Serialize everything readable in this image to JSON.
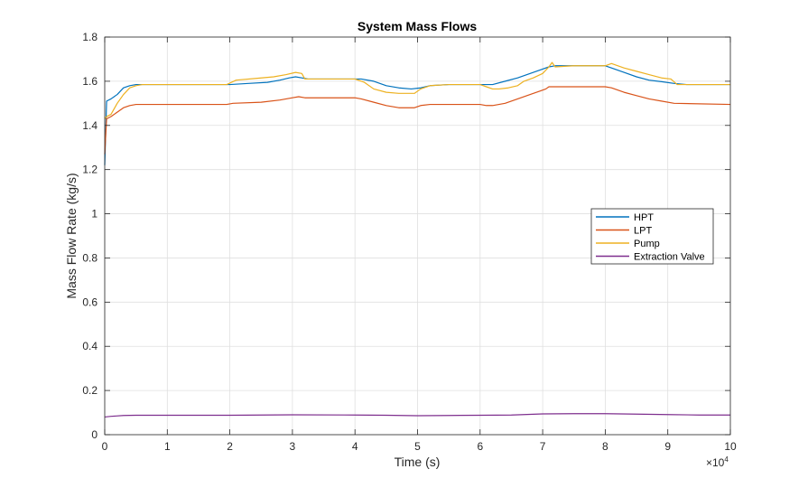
{
  "chart_data": {
    "type": "line",
    "title": "System Mass Flows",
    "xlabel": "Time (s)",
    "ylabel": "Mass Flow Rate (kg/s)",
    "x_multiplier_label": "×10",
    "x_multiplier_exp": "4",
    "xlim": [
      0,
      100000
    ],
    "ylim": [
      0,
      1.8
    ],
    "x_ticks": [
      0,
      10000,
      20000,
      30000,
      40000,
      50000,
      60000,
      70000,
      80000,
      90000,
      100000
    ],
    "x_tick_labels": [
      "0",
      "1",
      "2",
      "3",
      "4",
      "5",
      "6",
      "7",
      "8",
      "9",
      "10"
    ],
    "y_ticks": [
      0,
      0.2,
      0.4,
      0.6,
      0.8,
      1.0,
      1.2,
      1.4,
      1.6,
      1.8
    ],
    "y_tick_labels": [
      "0",
      "0.2",
      "0.4",
      "0.6",
      "0.8",
      "1",
      "1.2",
      "1.4",
      "1.6",
      "1.8"
    ],
    "grid": true,
    "legend_position": "right",
    "series": [
      {
        "name": "HPT",
        "color": "#0072BD",
        "x": [
          0,
          300,
          1000,
          2000,
          3000,
          4000,
          5000,
          10000,
          15000,
          20000,
          23000,
          26000,
          28000,
          29500,
          30500,
          31500,
          32500,
          35000,
          38000,
          41000,
          43000,
          45000,
          47000,
          49000,
          50500,
          52000,
          55000,
          60000,
          62000,
          64000,
          66000,
          68000,
          70000,
          71000,
          72000,
          75000,
          78000,
          80000,
          81000,
          83000,
          85000,
          87000,
          89000,
          91000,
          93000,
          100000
        ],
        "y": [
          1.22,
          1.51,
          1.52,
          1.54,
          1.57,
          1.58,
          1.585,
          1.585,
          1.585,
          1.585,
          1.59,
          1.595,
          1.605,
          1.615,
          1.62,
          1.615,
          1.61,
          1.61,
          1.61,
          1.61,
          1.6,
          1.58,
          1.57,
          1.565,
          1.57,
          1.58,
          1.585,
          1.585,
          1.585,
          1.6,
          1.615,
          1.635,
          1.655,
          1.665,
          1.67,
          1.67,
          1.67,
          1.67,
          1.66,
          1.64,
          1.62,
          1.605,
          1.598,
          1.59,
          1.585,
          1.585
        ]
      },
      {
        "name": "LPT",
        "color": "#D95319",
        "x": [
          0,
          300,
          1000,
          2000,
          3000,
          4000,
          5000,
          6000,
          10000,
          15000,
          19500,
          20500,
          25000,
          28000,
          30000,
          31000,
          32000,
          35000,
          40000,
          41000,
          43000,
          45000,
          47000,
          49500,
          50500,
          52000,
          55000,
          60000,
          61000,
          62000,
          64000,
          66000,
          68000,
          69500,
          70500,
          71000,
          75000,
          80000,
          81000,
          83000,
          85000,
          87000,
          89000,
          91000,
          100000
        ],
        "y": [
          1.27,
          1.43,
          1.44,
          1.46,
          1.48,
          1.49,
          1.495,
          1.495,
          1.495,
          1.495,
          1.495,
          1.5,
          1.505,
          1.515,
          1.525,
          1.53,
          1.525,
          1.525,
          1.525,
          1.52,
          1.505,
          1.49,
          1.48,
          1.48,
          1.49,
          1.495,
          1.495,
          1.495,
          1.49,
          1.49,
          1.5,
          1.52,
          1.54,
          1.555,
          1.565,
          1.575,
          1.575,
          1.575,
          1.57,
          1.55,
          1.535,
          1.52,
          1.51,
          1.5,
          1.495
        ]
      },
      {
        "name": "Pump",
        "color": "#EDB120",
        "x": [
          0,
          300,
          1000,
          2000,
          3000,
          4000,
          5000,
          6000,
          10000,
          15000,
          19500,
          21000,
          25000,
          27000,
          29000,
          30500,
          31500,
          32000,
          35000,
          40000,
          41500,
          43000,
          45000,
          47000,
          49500,
          50500,
          52000,
          55000,
          60000,
          61000,
          62000,
          63000,
          64500,
          66000,
          67000,
          68500,
          70000,
          71000,
          71500,
          72000,
          75000,
          78000,
          80000,
          81000,
          83000,
          85000,
          87000,
          89000,
          90500,
          91500,
          100000
        ],
        "y": [
          1.43,
          1.44,
          1.45,
          1.5,
          1.54,
          1.57,
          1.58,
          1.585,
          1.585,
          1.585,
          1.585,
          1.605,
          1.615,
          1.62,
          1.63,
          1.64,
          1.635,
          1.61,
          1.61,
          1.61,
          1.595,
          1.565,
          1.55,
          1.545,
          1.545,
          1.565,
          1.58,
          1.585,
          1.585,
          1.575,
          1.565,
          1.565,
          1.57,
          1.58,
          1.6,
          1.615,
          1.635,
          1.665,
          1.685,
          1.665,
          1.67,
          1.67,
          1.67,
          1.68,
          1.66,
          1.645,
          1.63,
          1.615,
          1.61,
          1.585,
          1.585
        ]
      },
      {
        "name": "Extraction Valve",
        "color": "#7E2F8E",
        "x": [
          0,
          1000,
          3000,
          5000,
          10000,
          20000,
          30000,
          40000,
          45000,
          50000,
          55000,
          60000,
          65000,
          70000,
          75000,
          80000,
          85000,
          90000,
          95000,
          100000
        ],
        "y": [
          0.08,
          0.083,
          0.087,
          0.088,
          0.088,
          0.088,
          0.09,
          0.089,
          0.088,
          0.086,
          0.087,
          0.088,
          0.089,
          0.094,
          0.095,
          0.095,
          0.093,
          0.091,
          0.089,
          0.089
        ]
      }
    ]
  }
}
